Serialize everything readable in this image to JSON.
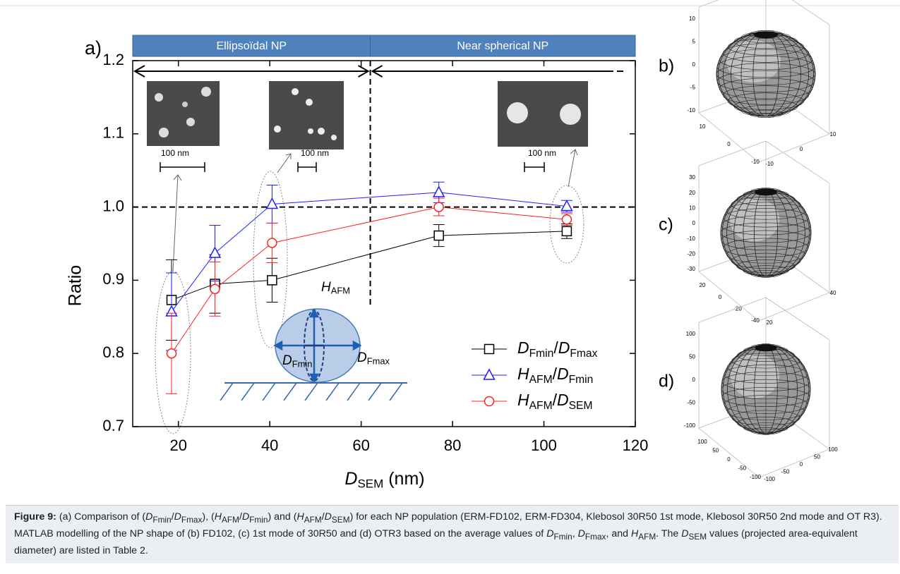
{
  "chart_data": {
    "type": "line",
    "panel_label": "a)",
    "x_label": "DSEM (nm)",
    "y_label": "Ratio",
    "x": [
      18.5,
      28,
      40.5,
      77,
      105
    ],
    "series": [
      {
        "name": "DFmin/DFmax",
        "color": "#000000",
        "marker": "square",
        "values": [
          0.873,
          0.895,
          0.9,
          0.961,
          0.967
        ],
        "errors": [
          0.055,
          0.04,
          0.03,
          0.015,
          0.01
        ]
      },
      {
        "name": "HAFM/DFmin",
        "color": "#1f1fff",
        "marker": "triangle",
        "values": [
          0.857,
          0.937,
          1.004,
          1.02,
          1.001
        ],
        "errors": [
          0.053,
          0.038,
          0.026,
          0.014,
          0.008
        ]
      },
      {
        "name": "HAFM/DSEM",
        "color": "#ff2020",
        "marker": "circle",
        "values": [
          0.8,
          0.888,
          0.951,
          1.0,
          0.983
        ],
        "errors": [
          0.055,
          0.037,
          0.027,
          0.012,
          0.008
        ]
      }
    ],
    "xlim": [
      10,
      120
    ],
    "xticks": [
      20,
      40,
      60,
      80,
      100,
      120
    ],
    "ylim": [
      0.7,
      1.2
    ],
    "yticks": [
      0.7,
      0.8,
      0.9,
      {
        "value": 1.0,
        "label": "1.0"
      },
      1.1,
      1.2
    ],
    "hline": 1.0,
    "vline": 62,
    "regions": [
      {
        "label": "Ellipsoïdal NP",
        "range": [
          10,
          62
        ]
      },
      {
        "label": "Near spherical NP",
        "range": [
          62,
          120
        ]
      }
    ],
    "legend_position": "lower right"
  },
  "scale_bars": [
    "100 nm",
    "100 nm",
    "100 nm"
  ],
  "schematic": {
    "height": "HAFM",
    "min": "DFmin",
    "max": "DFmax"
  },
  "sphere_plots": [
    {
      "label": "b)",
      "z_ticks": [
        10,
        5,
        0,
        -5,
        -10
      ],
      "left_ticks": [
        10,
        0,
        -10
      ],
      "right_ticks": [
        -10,
        0,
        10
      ]
    },
    {
      "label": "c)",
      "z_ticks": [
        30,
        20,
        10,
        0,
        -10,
        -20,
        -30
      ],
      "left_ticks": [
        20,
        0,
        -20,
        -40
      ],
      "right_ticks": [
        20,
        40
      ]
    },
    {
      "label": "d)",
      "z_ticks": [
        100,
        50,
        0,
        -50,
        -100
      ],
      "left_ticks": [
        100,
        50,
        0,
        -50,
        -100
      ],
      "right_ticks": [
        -100,
        -50,
        0,
        50,
        100
      ]
    }
  ],
  "caption": {
    "label": "Figure 9:",
    "text": "(a) Comparison of (DFmin/DFmax), (HAFM/DFmin) and (HAFM/DSEM) for each NP population (ERM-FD102, ERM-FD304, Klebosol 30R50 1st mode, Klebosol 30R50 2nd mode and OT R3). MATLAB modelling of the NP shape of (b) FD102, (c) 1st mode of 30R50 and (d) OTR3 based on the average values of DFmin, DFmax, and HAFM. The DSEM values (projected area-equivalent diameter) are listed in Table 2."
  }
}
